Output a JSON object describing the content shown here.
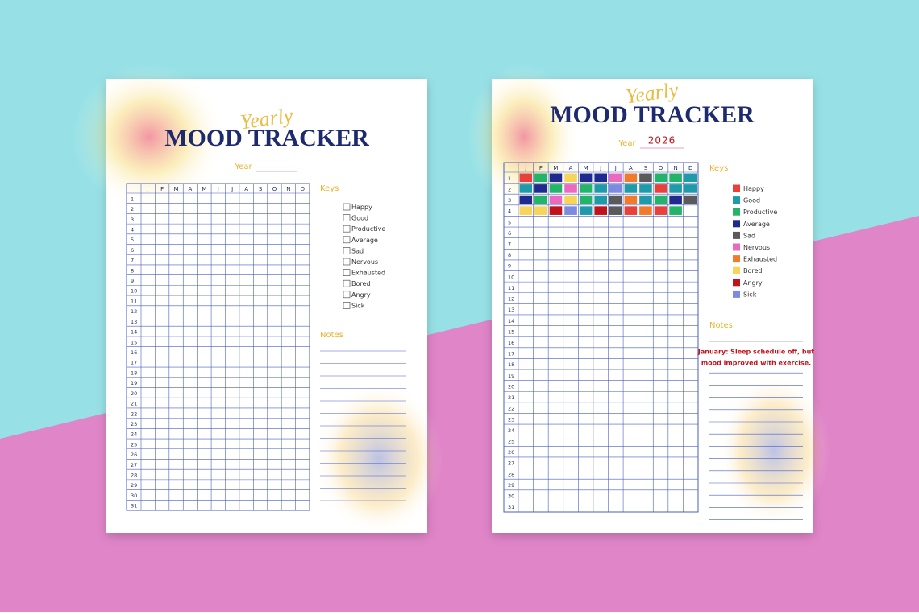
{
  "months": [
    "J",
    "F",
    "M",
    "A",
    "M",
    "J",
    "J",
    "A",
    "S",
    "O",
    "N",
    "D"
  ],
  "days": [
    1,
    2,
    3,
    4,
    5,
    6,
    7,
    8,
    9,
    10,
    11,
    12,
    13,
    14,
    15,
    16,
    17,
    18,
    19,
    20,
    21,
    22,
    23,
    24,
    25,
    26,
    27,
    28,
    29,
    30,
    31
  ],
  "keys": [
    {
      "label": "Happy",
      "color": "#e8403a"
    },
    {
      "label": "Good",
      "color": "#1f9aa8"
    },
    {
      "label": "Productive",
      "color": "#23b46a"
    },
    {
      "label": "Average",
      "color": "#1f2a8f"
    },
    {
      "label": "Sad",
      "color": "#5a5a5a"
    },
    {
      "label": "Nervous",
      "color": "#e96bc0"
    },
    {
      "label": "Exhausted",
      "color": "#f07b2d"
    },
    {
      "label": "Bored",
      "color": "#f5d55a"
    },
    {
      "label": "Angry",
      "color": "#c0141c"
    },
    {
      "label": "Sick",
      "color": "#7b8ce0"
    }
  ],
  "pages": [
    {
      "script_title": "Yearly",
      "title": "MOOD TRACKER",
      "year_label": "Year",
      "keys_heading": "Keys",
      "notes_heading": "Notes"
    },
    {
      "script_title": "Yearly",
      "title": "MOOD TRACKER",
      "year_label": "Year",
      "year": "2026",
      "keys_heading": "Keys",
      "notes_heading": "Notes",
      "note": [
        "January: Sleep schedule off, but",
        "mood improved with exercise."
      ],
      "moods": [
        [
          "Happy",
          "Productive",
          "Average",
          "Bored",
          "Average",
          "Average",
          "Nervous",
          "Exhausted",
          "Sad",
          "Productive",
          "Productive",
          "Good"
        ],
        [
          "Good",
          "Average",
          "Productive",
          "Nervous",
          "Productive",
          "Good",
          "Sick",
          "Good",
          "Good",
          "Happy",
          "Good",
          "Good"
        ],
        [
          "Average",
          "Productive",
          "Nervous",
          "Bored",
          "Productive",
          "Good",
          "Sad",
          "Exhausted",
          "Good",
          "Productive",
          "Average",
          "Sad"
        ],
        [
          "Bored",
          "Bored",
          "Angry",
          "Sick",
          "Good",
          "Angry",
          "Sad",
          "Happy",
          "Exhausted",
          "Happy",
          "Productive",
          null
        ]
      ]
    }
  ]
}
